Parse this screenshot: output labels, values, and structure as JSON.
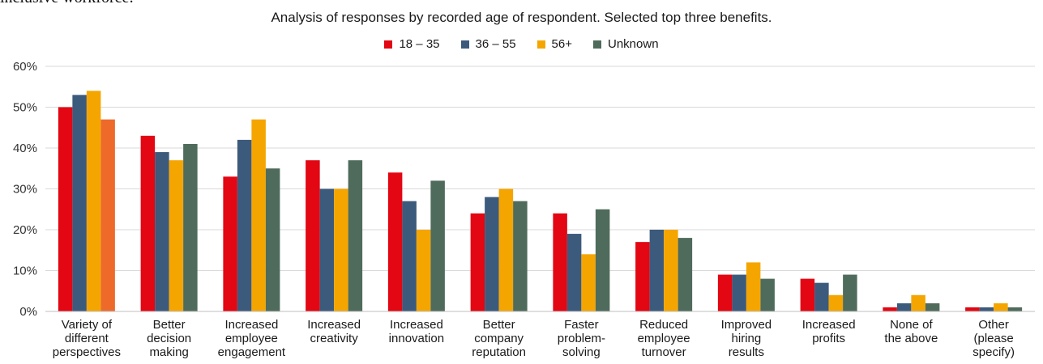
{
  "header": {
    "cut_title": "inclusive workforce:",
    "subtitle": "Analysis of responses by recorded age of respondent. Selected top three benefits."
  },
  "chart_data": {
    "type": "bar",
    "title": "",
    "subtitle": "Analysis of responses by recorded age of respondent. Selected top three benefits.",
    "xlabel": "",
    "ylabel": "",
    "ylim": [
      0,
      60
    ],
    "y_ticks": [
      "0%",
      "10%",
      "20%",
      "30%",
      "40%",
      "50%",
      "60%"
    ],
    "grid": true,
    "legend_position": "top-center",
    "categories": [
      [
        "Variety of",
        "different",
        "perspectives"
      ],
      [
        "Better",
        "decision",
        "making"
      ],
      [
        "Increased",
        "employee",
        "engagement"
      ],
      [
        "Increased",
        "creativity"
      ],
      [
        "Increased",
        "innovation"
      ],
      [
        "Better",
        "company",
        "reputation"
      ],
      [
        "Faster",
        "problem-",
        "solving"
      ],
      [
        "Reduced",
        "employee",
        "turnover"
      ],
      [
        "Improved",
        "hiring",
        "results"
      ],
      [
        "Increased",
        "profits"
      ],
      [
        "None of",
        "the above"
      ],
      [
        "Other",
        "(please",
        "specify)"
      ]
    ],
    "series": [
      {
        "name": "18 – 35",
        "color": "#e30613",
        "values": [
          50,
          43,
          33,
          37,
          34,
          24,
          24,
          17,
          9,
          8,
          1,
          1
        ]
      },
      {
        "name": "36 – 55",
        "color": "#3c5a7c",
        "values": [
          53,
          39,
          42,
          30,
          27,
          28,
          19,
          20,
          9,
          7,
          2,
          1
        ]
      },
      {
        "name": "56+",
        "color": "#f5a500",
        "values": [
          54,
          37,
          47,
          30,
          20,
          30,
          14,
          20,
          12,
          4,
          4,
          2
        ]
      },
      {
        "name": "Unknown",
        "color": "#4f6b5c",
        "values": [
          47,
          41,
          35,
          37,
          32,
          27,
          25,
          18,
          8,
          9,
          2,
          1
        ]
      }
    ],
    "highlight": {
      "category_index": 0,
      "series_index": 3,
      "color": "#ee6a2a"
    }
  }
}
